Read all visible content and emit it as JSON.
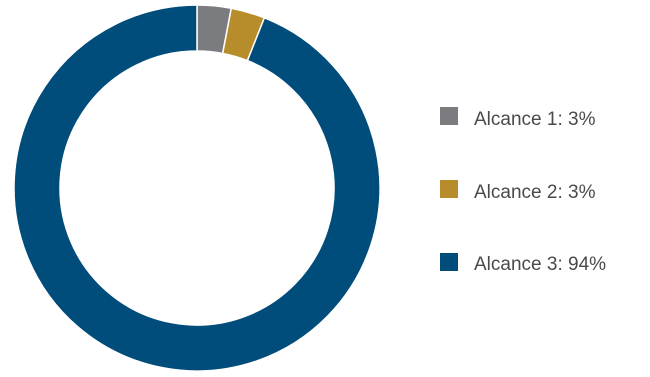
{
  "chart_data": {
    "type": "pie",
    "title": "",
    "categories": [
      "Alcance 1",
      "Alcance 2",
      "Alcance 3"
    ],
    "values": [
      3,
      3,
      94
    ],
    "labels": [
      "Alcance 1: 3%",
      "Alcance 2: 3%",
      "Alcance 3: 94%"
    ],
    "unit": "%",
    "colors": [
      "#7a7c80",
      "#b78d2c",
      "#004c7a"
    ],
    "donut": true,
    "legend": "right"
  }
}
